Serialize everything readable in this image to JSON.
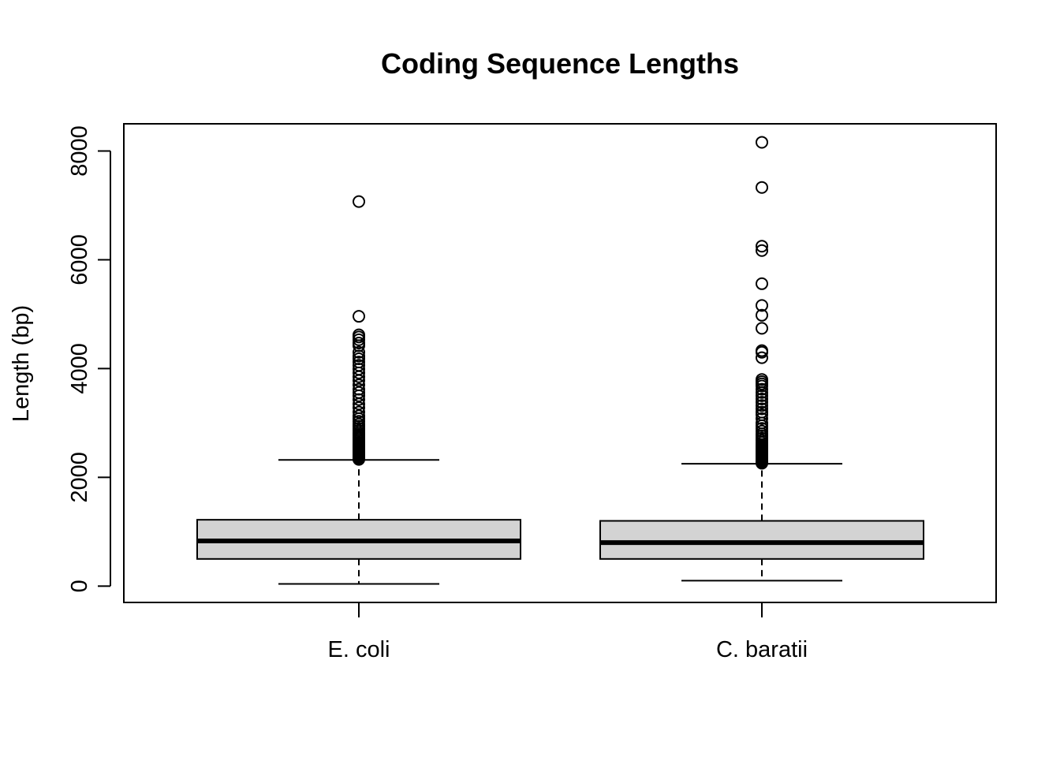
{
  "chart_data": {
    "type": "boxplot",
    "title": "Coding Sequence Lengths",
    "xlabel": "",
    "ylabel": "Length (bp)",
    "ylim": [
      -300,
      8500
    ],
    "yticks": [
      0,
      2000,
      4000,
      6000,
      8000
    ],
    "grid": false,
    "categories": [
      "E. coli",
      "C. baratii"
    ],
    "boxes": [
      {
        "category": "E. coli",
        "whisker_low": 40,
        "q1": 500,
        "median": 830,
        "q3": 1220,
        "whisker_high": 2320,
        "outliers": [
          2330,
          2350,
          2370,
          2390,
          2410,
          2430,
          2450,
          2470,
          2490,
          2510,
          2530,
          2550,
          2570,
          2590,
          2610,
          2640,
          2670,
          2700,
          2730,
          2760,
          2790,
          2820,
          2860,
          2900,
          2940,
          2980,
          3030,
          3080,
          3130,
          3200,
          3280,
          3350,
          3430,
          3500,
          3560,
          3620,
          3700,
          3780,
          3850,
          3920,
          3990,
          4060,
          4120,
          4180,
          4230,
          4300,
          4420,
          4470,
          4530,
          4580,
          4620,
          4960,
          7070
        ]
      },
      {
        "category": "C. baratii",
        "whisker_low": 100,
        "q1": 500,
        "median": 800,
        "q3": 1200,
        "whisker_high": 2250,
        "outliers": [
          2260,
          2280,
          2300,
          2320,
          2340,
          2360,
          2380,
          2400,
          2420,
          2440,
          2460,
          2480,
          2500,
          2520,
          2540,
          2560,
          2580,
          2600,
          2640,
          2680,
          2720,
          2760,
          2800,
          2850,
          2900,
          2950,
          3000,
          3080,
          3150,
          3200,
          3260,
          3320,
          3380,
          3440,
          3500,
          3560,
          3620,
          3680,
          3720,
          3760,
          3800,
          4200,
          4300,
          4330,
          4740,
          4980,
          5160,
          5560,
          6170,
          6250,
          7330,
          8160
        ]
      }
    ],
    "box_fill": "#d3d3d3",
    "line_color": "#000000"
  }
}
